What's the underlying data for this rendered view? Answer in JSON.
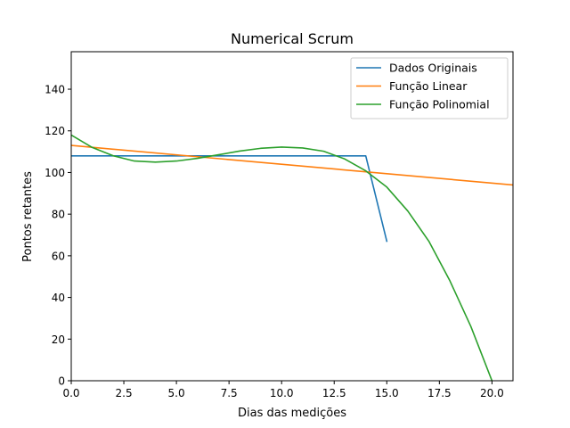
{
  "chart_data": {
    "type": "line",
    "title": "Numerical Scrum",
    "xlabel": "Dias das medições",
    "ylabel": "Pontos retantes",
    "xlim": [
      0,
      21
    ],
    "ylim": [
      0,
      158
    ],
    "xticks": [
      0,
      2.5,
      5,
      7.5,
      10,
      12.5,
      15,
      17.5,
      20
    ],
    "xtick_labels": [
      "0.0",
      "2.5",
      "5.0",
      "7.5",
      "10.0",
      "12.5",
      "15.0",
      "17.5",
      "20.0"
    ],
    "yticks": [
      0,
      20,
      40,
      60,
      80,
      100,
      120,
      140
    ],
    "ytick_labels": [
      "0",
      "20",
      "40",
      "60",
      "80",
      "100",
      "120",
      "140"
    ],
    "grid": false,
    "legend_position": "top-right",
    "series": [
      {
        "name": "Dados Originais",
        "color": "#1f77b4",
        "points": [
          [
            0,
            108
          ],
          [
            14,
            108
          ],
          [
            15,
            67
          ]
        ]
      },
      {
        "name": "Função Linear",
        "color": "#ff7f0e",
        "points": [
          [
            0,
            113
          ],
          [
            21,
            94
          ]
        ]
      },
      {
        "name": "Função Polinomial",
        "color": "#2ca02c",
        "points": [
          [
            0,
            118
          ],
          [
            1,
            112
          ],
          [
            2,
            108
          ],
          [
            3,
            105.5
          ],
          [
            4,
            105
          ],
          [
            5,
            105.5
          ],
          [
            6,
            106.8
          ],
          [
            7,
            108.5
          ],
          [
            8,
            110.3
          ],
          [
            9,
            111.6
          ],
          [
            10,
            112.2
          ],
          [
            11,
            111.8
          ],
          [
            12,
            110.2
          ],
          [
            13,
            106.5
          ],
          [
            14,
            100.8
          ],
          [
            15,
            93
          ],
          [
            16,
            81.5
          ],
          [
            17,
            67
          ],
          [
            18,
            48
          ],
          [
            19,
            26
          ],
          [
            20,
            0
          ]
        ]
      }
    ]
  }
}
